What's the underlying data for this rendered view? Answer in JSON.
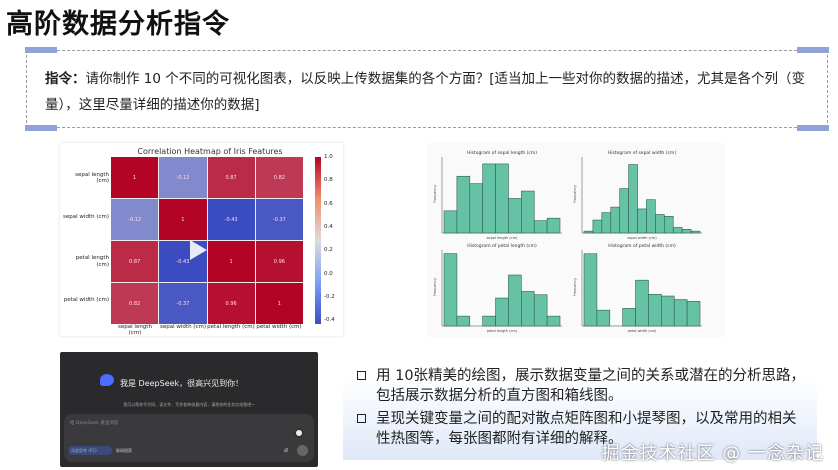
{
  "title": "高阶数据分析指令",
  "instruction": {
    "label": "指令：",
    "text": "请你制作 10 个不同的可视化图表，以反映上传数据集的各个方面？[适当加上一些对你的数据的描述，尤其是各个列（变量），这里尽量详细的描述你的数据]"
  },
  "heatmap": {
    "title": "Correlation Heatmap of Iris Features",
    "labels": [
      "sepal length (cm)",
      "sepal width (cm)",
      "petal length (cm)",
      "petal width (cm)"
    ],
    "values": [
      [
        "1",
        "-0.12",
        "0.87",
        "0.82"
      ],
      [
        "-0.12",
        "1",
        "-0.43",
        "-0.37"
      ],
      [
        "0.87",
        "-0.43",
        "1",
        "0.96"
      ],
      [
        "0.82",
        "-0.37",
        "0.96",
        "1"
      ]
    ],
    "colorbar_ticks": [
      "1.0",
      "0.8",
      "0.6",
      "0.4",
      "0.2",
      "0.0",
      "-0.2",
      "-0.4"
    ],
    "colorbar_range": [
      -0.43,
      1.0
    ],
    "colormap": "coolwarm"
  },
  "histograms": [
    {
      "title": "Histogram of sepal length (cm)",
      "xlabel": "sepal length (cm)",
      "ylabel": "Frequency",
      "counts": [
        9,
        23,
        20,
        28,
        28,
        14,
        17,
        5,
        6
      ],
      "ymax": 30
    },
    {
      "title": "Histogram of sepal width (cm)",
      "xlabel": "sepal width (cm)",
      "ylabel": "Frequency",
      "counts": [
        1,
        7,
        11,
        14,
        24,
        37,
        13,
        18,
        10,
        9,
        3,
        2,
        1
      ],
      "ymax": 40
    },
    {
      "title": "Histogram of petal length (cm)",
      "xlabel": "petal length (cm)",
      "ylabel": "Frequency",
      "counts": [
        44,
        6,
        0,
        6,
        17,
        31,
        21,
        19,
        6
      ],
      "ymax": 45
    },
    {
      "title": "Histogram of petal width (cm)",
      "xlabel": "petal width (cm)",
      "ylabel": "Frequency",
      "counts": [
        41,
        9,
        0,
        10,
        26,
        18,
        17,
        15,
        14
      ],
      "ymax": 42
    }
  ],
  "bar_color": "#66c2a5",
  "deepseek": {
    "greeting": "我是 DeepSeek，很高兴见到你！",
    "subtitle": "我可以帮你写代码、读文件、写作各种创意内容，请把你的任务交给我吧~",
    "placeholder": "给 DeepSeek 发送消息",
    "deep_think": "深度思考 (R1)",
    "web_search": "联网搜索"
  },
  "bullets": [
    "用 10张精美的绘图，展示数据变量之间的关系或潜在的分析思路，包括展示数据分析的直方图和箱线图。",
    "呈现关键变量之间的配对散点矩阵图和小提琴图，以及常用的相关性热图等，每张图都附有详细的解释。"
  ],
  "watermark": "掘金技术社区 @ 一念杂记"
}
